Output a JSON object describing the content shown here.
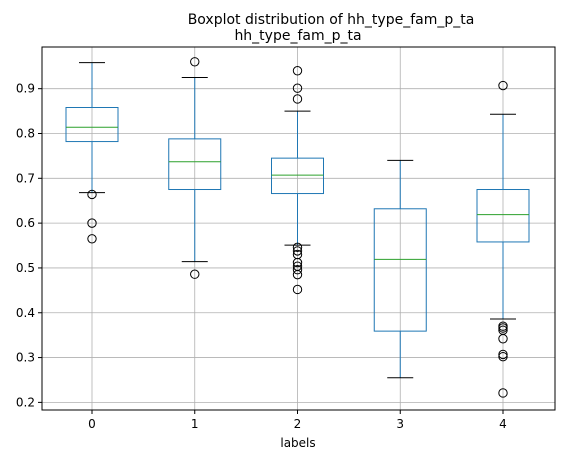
{
  "chart_data": {
    "type": "boxplot",
    "suptitle": "Boxplot distribution of hh_type_fam_p_ta",
    "title": "hh_type_fam_p_ta",
    "xlabel": "labels",
    "ylabel": "",
    "grid": true,
    "categories": [
      "0",
      "1",
      "2",
      "3",
      "4"
    ],
    "y_ticks": [
      0.2,
      0.3,
      0.4,
      0.5,
      0.6,
      0.7,
      0.8,
      0.9
    ],
    "ylim": [
      0.183,
      0.993
    ],
    "colors": {
      "box": "#1f77b4",
      "median": "#2ca02c",
      "whisker": "#1f77b4",
      "cap": "#000000",
      "flier": "#000000",
      "grid": "#b0b0b0"
    },
    "boxes": [
      {
        "label": "0",
        "whisker_low": 0.668,
        "q1": 0.782,
        "median": 0.814,
        "q3": 0.858,
        "whisker_high": 0.958,
        "fliers": [
          0.664,
          0.6,
          0.565
        ]
      },
      {
        "label": "1",
        "whisker_low": 0.514,
        "q1": 0.675,
        "median": 0.737,
        "q3": 0.788,
        "whisker_high": 0.925,
        "fliers": [
          0.96,
          0.486
        ]
      },
      {
        "label": "2",
        "whisker_low": 0.551,
        "q1": 0.666,
        "median": 0.707,
        "q3": 0.745,
        "whisker_high": 0.85,
        "fliers": [
          0.94,
          0.901,
          0.877,
          0.546,
          0.538,
          0.53,
          0.512,
          0.504,
          0.496,
          0.485,
          0.452
        ]
      },
      {
        "label": "3",
        "whisker_low": 0.255,
        "q1": 0.359,
        "median": 0.519,
        "q3": 0.632,
        "whisker_high": 0.74,
        "fliers": []
      },
      {
        "label": "4",
        "whisker_low": 0.386,
        "q1": 0.558,
        "median": 0.619,
        "q3": 0.675,
        "whisker_high": 0.843,
        "fliers": [
          0.907,
          0.37,
          0.366,
          0.361,
          0.342,
          0.307,
          0.302,
          0.221
        ]
      }
    ]
  }
}
